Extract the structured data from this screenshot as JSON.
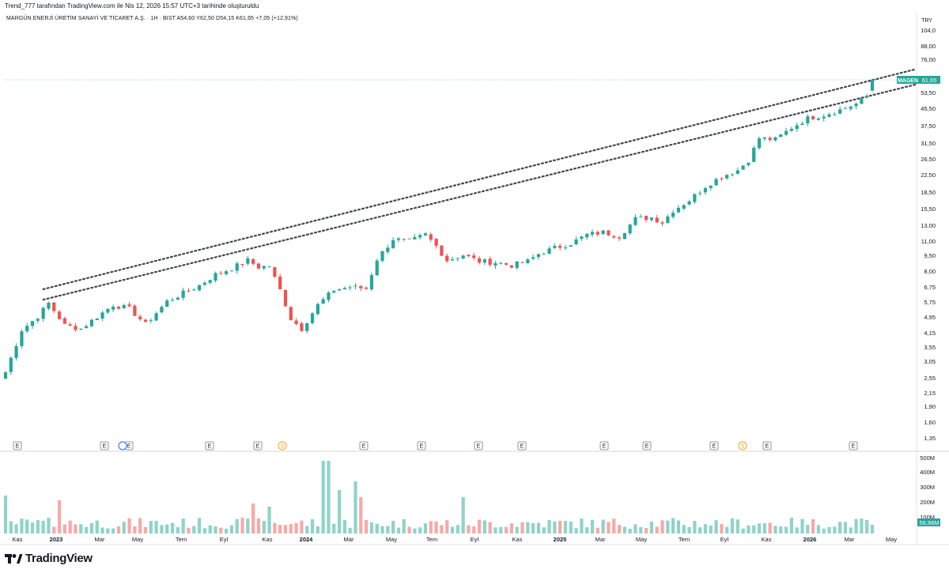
{
  "header": {
    "author_line": "Trend_777 tarafından TradingView.com ile Nis 12, 2026 15:57 UTC+3 tarihinde oluşturuldu",
    "symbol_line": "MARGÜN ENERJİ ÜRETİM SANAYİ VE TİCARET A.Ş. · 1H · BIST   A54,60   Y62,50   D54,15   K61,65   +7,05 (+12,91%)"
  },
  "footer": {
    "brand": "TradingView",
    "logo_icon": "tradingview-logo-icon"
  },
  "colors": {
    "up": "#26a69a",
    "down": "#ef5350",
    "vol_up": "#8fd3c9",
    "vol_down": "#f7a9a7",
    "trend": "#434651",
    "price_line": "#26a69a"
  },
  "chart_data": {
    "type": "candlestick",
    "symbol": "MAGEN",
    "currency": "TRY",
    "interval": "1H",
    "exchange": "BIST",
    "price_scale": "log",
    "y_ticks": [
      "104,0",
      "88,00",
      "76,00",
      "61,65",
      "53,50",
      "45,50",
      "37,50",
      "31,50",
      "26,50",
      "22,50",
      "18,50",
      "15,50",
      "13,00",
      "11,00",
      "9,50",
      "8,00",
      "6,75",
      "5,75",
      "4,95",
      "4,15",
      "3,55",
      "3,05",
      "2,55",
      "2,15",
      "1,90",
      "1,60",
      "1,35"
    ],
    "x_ticks": [
      "Kas",
      "2023",
      "Mar",
      "May",
      "Tem",
      "Eyl",
      "Kas",
      "2024",
      "Mar",
      "May",
      "Tem",
      "Eyl",
      "Kas",
      "2025",
      "Mar",
      "May",
      "Tem",
      "Eyl",
      "Kas",
      "2026",
      "Mar",
      "May"
    ],
    "x_ticks_bold": [
      "2023",
      "2024",
      "2025",
      "2026"
    ],
    "last_price": 61.65,
    "last_price_label": "61,65",
    "symbol_badge": "MAGEN",
    "events": [
      "E",
      "E",
      "E",
      "E",
      "E",
      "S",
      "E",
      "E",
      "E",
      "E",
      "E",
      "E",
      "E",
      "S",
      "E",
      "E"
    ],
    "volume_ticks": [
      "500M",
      "400M",
      "300M",
      "200M",
      "100M"
    ],
    "volume_last": "56,96M",
    "trendlines": [
      {
        "from_price": 5.85,
        "to_price": 69.5
      },
      {
        "from_price": 5.2,
        "to_price": 58.5
      }
    ],
    "anchors": [
      [
        0,
        2.3
      ],
      [
        3,
        3.7
      ],
      [
        6,
        4.3
      ],
      [
        8,
        5.0
      ],
      [
        11,
        3.9
      ],
      [
        14,
        3.75
      ],
      [
        17,
        4.3
      ],
      [
        20,
        4.9
      ],
      [
        23,
        4.7
      ],
      [
        26,
        3.95
      ],
      [
        30,
        5.1
      ],
      [
        33,
        5.6
      ],
      [
        36,
        6.1
      ],
      [
        39,
        6.9
      ],
      [
        42,
        7.4
      ],
      [
        45,
        8.1
      ],
      [
        47,
        7.5
      ],
      [
        49,
        7.6
      ],
      [
        51,
        5.8
      ],
      [
        53,
        4.2
      ],
      [
        55,
        3.75
      ],
      [
        58,
        4.9
      ],
      [
        61,
        5.8
      ],
      [
        64,
        6.0
      ],
      [
        67,
        5.9
      ],
      [
        69,
        8.2
      ],
      [
        72,
        10.3
      ],
      [
        75,
        10.0
      ],
      [
        78,
        10.8
      ],
      [
        80,
        9.5
      ],
      [
        82,
        8.1
      ],
      [
        85,
        8.6
      ],
      [
        88,
        8.0
      ],
      [
        91,
        7.9
      ],
      [
        94,
        7.65
      ],
      [
        97,
        8.0
      ],
      [
        99,
        8.7
      ],
      [
        102,
        9.3
      ],
      [
        105,
        9.8
      ],
      [
        108,
        10.8
      ],
      [
        111,
        11.1
      ],
      [
        114,
        10.6
      ],
      [
        117,
        12.9
      ],
      [
        120,
        13.1
      ],
      [
        122,
        12.4
      ],
      [
        124,
        14.2
      ],
      [
        127,
        15.9
      ],
      [
        130,
        18.6
      ],
      [
        133,
        20.8
      ],
      [
        136,
        22.3
      ],
      [
        138,
        25.0
      ],
      [
        140,
        32.0
      ],
      [
        143,
        31.5
      ],
      [
        146,
        36.0
      ],
      [
        149,
        40.0
      ],
      [
        152,
        41.5
      ],
      [
        155,
        44.0
      ],
      [
        158,
        47.0
      ],
      [
        160,
        51.0
      ],
      [
        161,
        61.65
      ]
    ]
  }
}
